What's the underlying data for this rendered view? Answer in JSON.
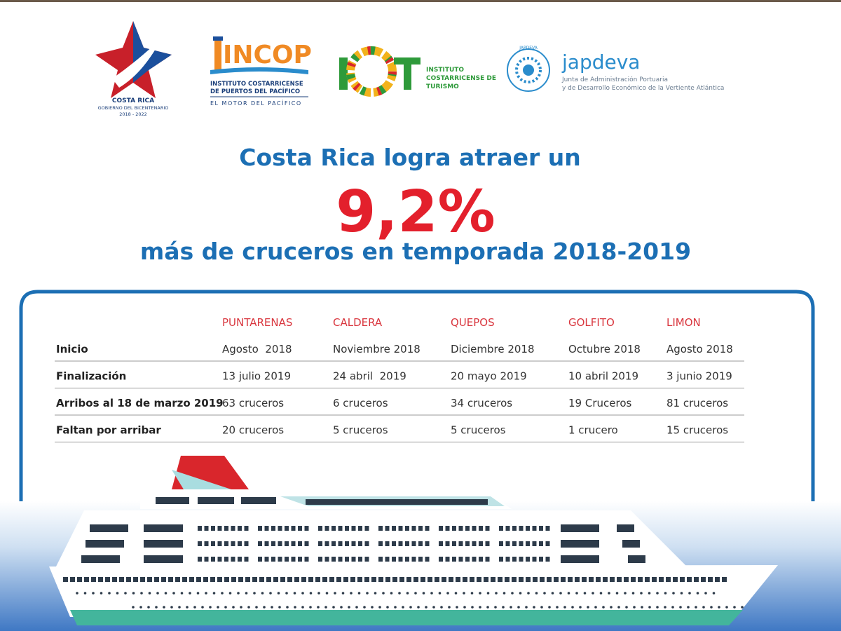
{
  "logos": {
    "gobierno": {
      "name": "COSTA RICA",
      "line1": "GOBIERNO DEL BICENTENARIO",
      "line2": "2018 - 2022"
    },
    "incop": {
      "name": "INCOP",
      "line1": "INSTITUTO COSTARRICENSE",
      "line2": "DE PUERTOS DEL PACÍFICO",
      "motto": "EL MOTOR DEL PACÍFICO"
    },
    "ict": {
      "name": "ICT",
      "line1": "INSTITUTO",
      "line2": "COSTARRICENSE DE",
      "line3": "TURISMO"
    },
    "japdeva": {
      "seal": "JAPDEVA",
      "name": "japdeva",
      "line1": "Junta de Administración Portuaria",
      "line2": "y de Desarrollo Económico de la Vertiente Atlántica"
    }
  },
  "headline": {
    "line1": "Costa Rica logra atraer un",
    "figure": "9,2%",
    "line2": "más de cruceros en temporada 2018-2019"
  },
  "table": {
    "columns": [
      "PUNTARENAS",
      "CALDERA",
      "QUEPOS",
      "GOLFITO",
      "LIMON"
    ],
    "rows": [
      {
        "label": "Inicio",
        "cells": [
          "Agosto  2018",
          "Noviembre 2018",
          "Diciembre 2018",
          "Octubre 2018",
          "Agosto 2018"
        ]
      },
      {
        "label": "Finalización",
        "cells": [
          "13 julio 2019",
          "24 abril  2019",
          "20 mayo 2019",
          "10 abril 2019",
          "3 junio 2019"
        ]
      },
      {
        "label": "Arribos al 18 de marzo 2019",
        "cells": [
          "63 cruceros",
          "6 cruceros",
          "34 cruceros",
          "19 Cruceros",
          "81 cruceros"
        ]
      },
      {
        "label": "Faltan por arribar",
        "cells": [
          "20 cruceros",
          "5 cruceros",
          "5 cruceros",
          "1 crucero",
          "15 cruceros"
        ]
      }
    ]
  }
}
